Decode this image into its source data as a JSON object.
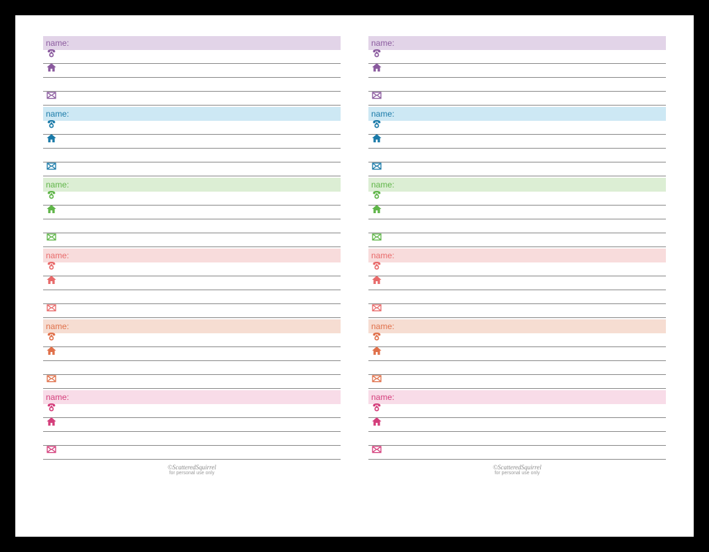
{
  "label_name": "name:",
  "footer_line1": "©ScatteredSquirrel",
  "footer_line2": "for personal use only",
  "line_color": "#888888",
  "entries": [
    {
      "color": "#8a5a9e",
      "bg": "#e2d4e8"
    },
    {
      "color": "#1a7aa8",
      "bg": "#cde8f4"
    },
    {
      "color": "#5fb548",
      "bg": "#dceed4"
    },
    {
      "color": "#e86a6a",
      "bg": "#f8dcdc"
    },
    {
      "color": "#e0704a",
      "bg": "#f6ddd2"
    },
    {
      "color": "#d43e7b",
      "bg": "#f8dce8"
    }
  ],
  "icons": {
    "phone": "phone-icon",
    "home": "home-icon",
    "mail": "mail-icon"
  }
}
